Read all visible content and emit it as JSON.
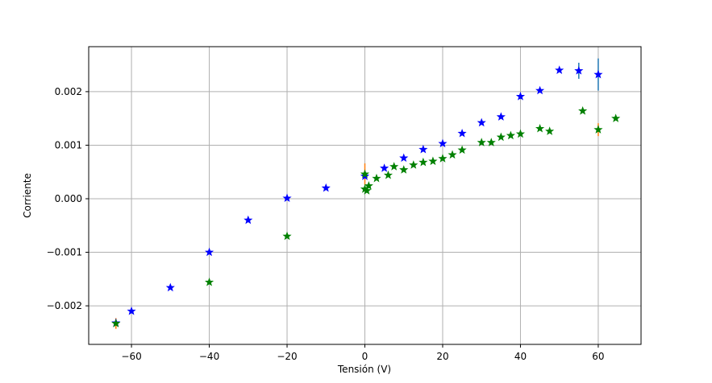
{
  "chart_data": {
    "type": "scatter",
    "title": "",
    "xlabel": "Tensión (V)",
    "ylabel": "Corriente",
    "xlim": [
      -71,
      71
    ],
    "ylim": [
      -0.00272,
      0.00284
    ],
    "xticks": [
      -60,
      -40,
      -20,
      0,
      20,
      40,
      60
    ],
    "xtick_labels": [
      "−60",
      "−40",
      "−20",
      "0",
      "20",
      "40",
      "60"
    ],
    "yticks": [
      -0.002,
      -0.001,
      0.0,
      0.001,
      0.002
    ],
    "ytick_labels": [
      "−0.002",
      "−0.001",
      "0.000",
      "0.001",
      "0.002"
    ],
    "grid": true,
    "legend": "none",
    "series": [
      {
        "marker": "star",
        "color": "#0000ff",
        "errorbar_color": "#1f77b4",
        "x": [
          -64,
          -60,
          -50,
          -40,
          -30,
          -20,
          -10,
          0,
          5,
          10,
          15,
          20,
          25,
          30,
          35,
          40,
          45,
          50,
          55,
          60
        ],
        "y": [
          -0.00232,
          -0.0021,
          -0.00166,
          -0.001,
          -0.0004,
          1e-05,
          0.0002,
          0.00042,
          0.00057,
          0.00076,
          0.00092,
          0.00103,
          0.00122,
          0.00142,
          0.00153,
          0.00191,
          0.00202,
          0.0024,
          0.00239,
          0.00232
        ],
        "yerr": [
          3e-05,
          3e-05,
          3e-05,
          3e-05,
          3e-05,
          3e-05,
          3e-05,
          3e-05,
          3e-05,
          3e-05,
          3e-05,
          3e-05,
          3e-05,
          3e-05,
          3e-05,
          5e-05,
          3e-05,
          3e-05,
          0.00015,
          0.0003
        ]
      },
      {
        "marker": "star",
        "color": "#008000",
        "errorbar_color": "#ff7f0e",
        "x": [
          -64,
          -40,
          -20,
          0,
          0,
          0.5,
          1,
          3,
          6,
          7.5,
          10,
          12.5,
          15,
          17.5,
          20,
          22.5,
          25,
          30,
          32.5,
          35,
          37.5,
          40,
          45,
          47.5,
          56,
          60,
          64.5
        ],
        "y": [
          -0.00233,
          -0.00156,
          -0.0007,
          0.00018,
          0.00046,
          0.00015,
          0.00024,
          0.00038,
          0.00044,
          0.0006,
          0.00054,
          0.00063,
          0.00068,
          0.0007,
          0.00075,
          0.00082,
          0.00091,
          0.00105,
          0.00105,
          0.00115,
          0.00118,
          0.00121,
          0.00131,
          0.00126,
          0.00164,
          0.00129,
          0.0015
        ],
        "yerr": [
          0.0001,
          3e-05,
          3e-05,
          3e-05,
          0.0002,
          3e-05,
          3e-05,
          3e-05,
          3e-05,
          3e-05,
          3e-05,
          3e-05,
          3e-05,
          3e-05,
          3e-05,
          3e-05,
          3e-05,
          3e-05,
          3e-05,
          3e-05,
          3e-05,
          3e-05,
          3e-05,
          3e-05,
          3e-05,
          0.00012,
          3e-05
        ]
      }
    ]
  }
}
